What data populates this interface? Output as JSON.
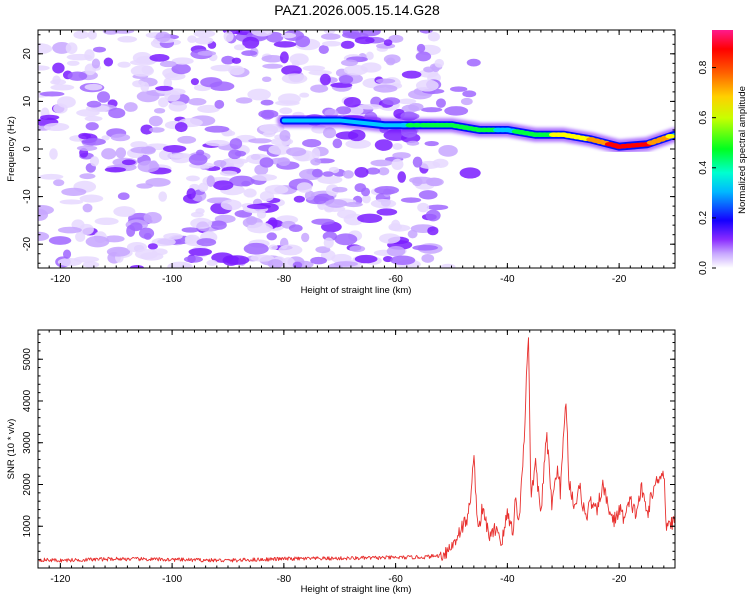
{
  "title": "PAZ1.2026.005.15.14.G28",
  "chart_data": [
    {
      "type": "heatmap",
      "xlabel": "Height of straight line (km)",
      "ylabel": "Frequency (Hz)",
      "xlim": [
        -124,
        -10
      ],
      "ylim": [
        -25,
        25
      ],
      "xticks": [
        -120,
        -100,
        -80,
        -60,
        -40,
        -20
      ],
      "yticks": [
        -20,
        -10,
        0,
        10,
        20
      ],
      "colorbar": {
        "label": "Normalized spectral amplitude",
        "range": [
          0,
          0.95
        ],
        "ticks": [
          0.0,
          0.2,
          0.4,
          0.6,
          0.8
        ],
        "colors": [
          "#ffffff",
          "#b48cff",
          "#7b00ff",
          "#0000ff",
          "#00c8ff",
          "#00ff40",
          "#ffff00",
          "#ff9900",
          "#ff0000",
          "#ff1a8c"
        ]
      },
      "signal_track": {
        "x_km": [
          -80,
          -70,
          -62,
          -55,
          -50,
          -45,
          -40,
          -35,
          -30,
          -25,
          -20,
          -15,
          -10
        ],
        "freq_hz": [
          6,
          6,
          5,
          5,
          5,
          4,
          4,
          3,
          3,
          2,
          0.5,
          1,
          3
        ],
        "amplitude": [
          0.3,
          0.3,
          0.35,
          0.55,
          0.5,
          0.5,
          0.45,
          0.55,
          0.6,
          0.7,
          0.85,
          0.8,
          0.65
        ]
      }
    },
    {
      "type": "line",
      "xlabel": "Height of straight line (km)",
      "ylabel": "SNR (10 * v/v)",
      "xlim": [
        -124,
        -10
      ],
      "ylim": [
        0,
        5700
      ],
      "xticks": [
        -120,
        -100,
        -80,
        -60,
        -40,
        -20
      ],
      "yticks": [
        1000,
        2000,
        3000,
        4000,
        5000
      ],
      "color": "#e8312f",
      "series": [
        {
          "name": "SNR",
          "x": [
            -124,
            -120,
            -110,
            -100,
            -90,
            -80,
            -70,
            -60,
            -55,
            -52,
            -50,
            -48.5,
            -47,
            -46,
            -45.2,
            -44.5,
            -43,
            -42,
            -41,
            -40,
            -39,
            -38.5,
            -38,
            -37.5,
            -37,
            -36.6,
            -36.2,
            -35.8,
            -35,
            -34,
            -33,
            -32,
            -31,
            -30.5,
            -30,
            -29.5,
            -29,
            -28,
            -27,
            -26,
            -25,
            -24,
            -23,
            -22,
            -21,
            -20,
            -19,
            -18,
            -17,
            -16,
            -15,
            -14,
            -13,
            -12,
            -11.5,
            -11,
            -10.5,
            -10
          ],
          "y": [
            200,
            180,
            220,
            200,
            180,
            220,
            230,
            250,
            260,
            300,
            500,
            900,
            1200,
            2600,
            900,
            1400,
            700,
            1000,
            600,
            1300,
            900,
            1700,
            1000,
            2000,
            3000,
            4600,
            5700,
            1600,
            2500,
            1300,
            3200,
            1500,
            2500,
            1800,
            3000,
            4100,
            2100,
            1500,
            1900,
            1200,
            1600,
            1300,
            2000,
            1500,
            1100,
            1400,
            1200,
            1600,
            1300,
            1900,
            1300,
            1800,
            2200,
            2300,
            900,
            1200,
            1000,
            1200
          ]
        }
      ]
    }
  ]
}
